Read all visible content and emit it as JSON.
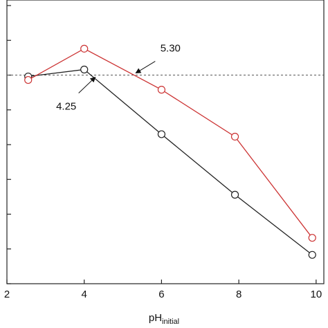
{
  "chart_data": {
    "type": "line",
    "x_label": "pH",
    "x_label_sub": "initial",
    "series": [
      {
        "color": "#222222",
        "x": [
          2.55,
          4.0,
          6.0,
          7.9,
          9.9
        ],
        "values": [
          -0.04,
          0.16,
          -1.7,
          -3.44,
          -5.17
        ]
      },
      {
        "color": "#cc3333",
        "x": [
          2.55,
          4.0,
          6.0,
          7.9,
          9.9
        ],
        "values": [
          -0.14,
          0.76,
          -0.42,
          -1.77,
          -4.68
        ]
      }
    ],
    "xlim": [
      2,
      10.2
    ],
    "xticks": [
      2,
      4,
      6,
      8,
      10
    ],
    "ylim": [
      -6,
      2.16
    ],
    "yticks": [
      -6,
      -5,
      -4,
      -3,
      -2,
      -1,
      0,
      1,
      2
    ],
    "reference_line": 0,
    "annotations": [
      {
        "value": 5.3,
        "label": "5.30"
      },
      {
        "value": 4.25,
        "label": "4.25"
      }
    ]
  }
}
